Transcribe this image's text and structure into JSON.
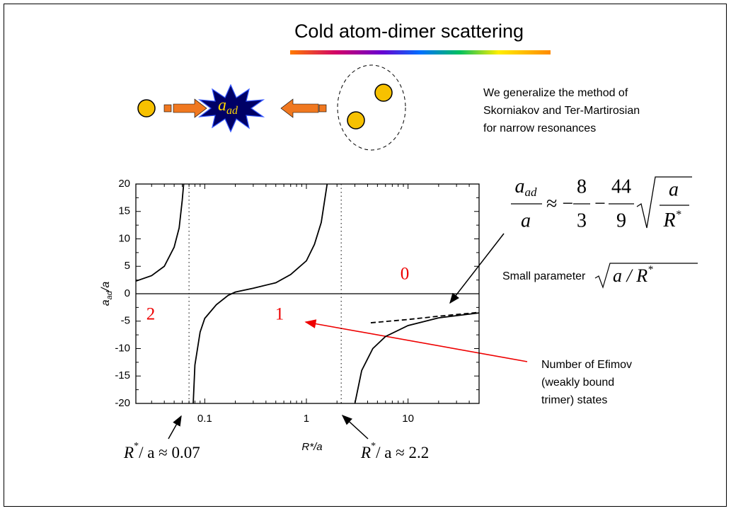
{
  "slide": {
    "title": "Cold atom-dimer scattering",
    "diagram": {
      "label": "a",
      "sub": "ad"
    },
    "intro_lines": [
      "We generalize the method of",
      "Skorniakov and Ter-Martirosian",
      "for narrow resonances"
    ],
    "formula": {
      "num": "a",
      "num_sub": "ad",
      "den": "a",
      "approx": "≈ −",
      "f1_num": "8",
      "f1_den": "3",
      "minus": "−",
      "f2_num": "44",
      "f2_den": "9",
      "root_num": "a",
      "root_den": "R",
      "root_sup": "*"
    },
    "small_parameter": {
      "text": "Small parameter",
      "root": "a / R",
      "root_sup": "*"
    },
    "efimov_note": [
      "Number of Efimov",
      "(weakly bound",
      "trimer) states"
    ]
  },
  "chart_data": {
    "type": "line",
    "y_label": {
      "main": "a",
      "sub": "ad",
      "rest": "/a"
    },
    "x_label": "R*/a",
    "xlim": [
      0.021,
      50
    ],
    "ylim": [
      -20,
      20
    ],
    "xticks": [
      0.1,
      1,
      10
    ],
    "yticks": [
      -20,
      -15,
      -10,
      -5,
      0,
      5,
      10,
      15,
      20
    ],
    "log_x": true,
    "zero_line": true,
    "series": [
      {
        "color": "#000000",
        "dash": false,
        "x": [
          0.021,
          0.03,
          0.04,
          0.05,
          0.056,
          0.06,
          0.062
        ],
        "values": [
          2.3,
          3.3,
          5,
          8.5,
          12,
          17,
          20
        ]
      },
      {
        "color": "#000000",
        "dash": false,
        "x": [
          0.077,
          0.08,
          0.09,
          0.1,
          0.13,
          0.17,
          0.2,
          0.3,
          0.5,
          0.7,
          1,
          1.2,
          1.4,
          1.6
        ],
        "values": [
          -20,
          -13,
          -7,
          -4.5,
          -2,
          -0.3,
          0.3,
          1,
          2,
          3.5,
          6,
          9,
          13,
          20
        ]
      },
      {
        "color": "#000000",
        "dash": false,
        "x": [
          3.0,
          3.5,
          4.5,
          6,
          10,
          20,
          50
        ],
        "values": [
          -20,
          -14,
          -10,
          -7.8,
          -5.8,
          -4.4,
          -3.5
        ]
      },
      {
        "color": "#000000",
        "dash": true,
        "x": [
          4.3,
          10,
          20,
          50
        ],
        "values": [
          -5.3,
          -4.7,
          -4.1,
          -3.4
        ]
      }
    ],
    "reference_lines": [
      0.07,
      2.2
    ],
    "region_labels": [
      "2",
      "1",
      "0"
    ],
    "annotations": [
      {
        "main": "R",
        "sup": "*",
        "rest": "/ a ≈ 0.07"
      },
      {
        "main": "R",
        "sup": "*",
        "rest": "/ a ≈ 2.2"
      }
    ]
  }
}
